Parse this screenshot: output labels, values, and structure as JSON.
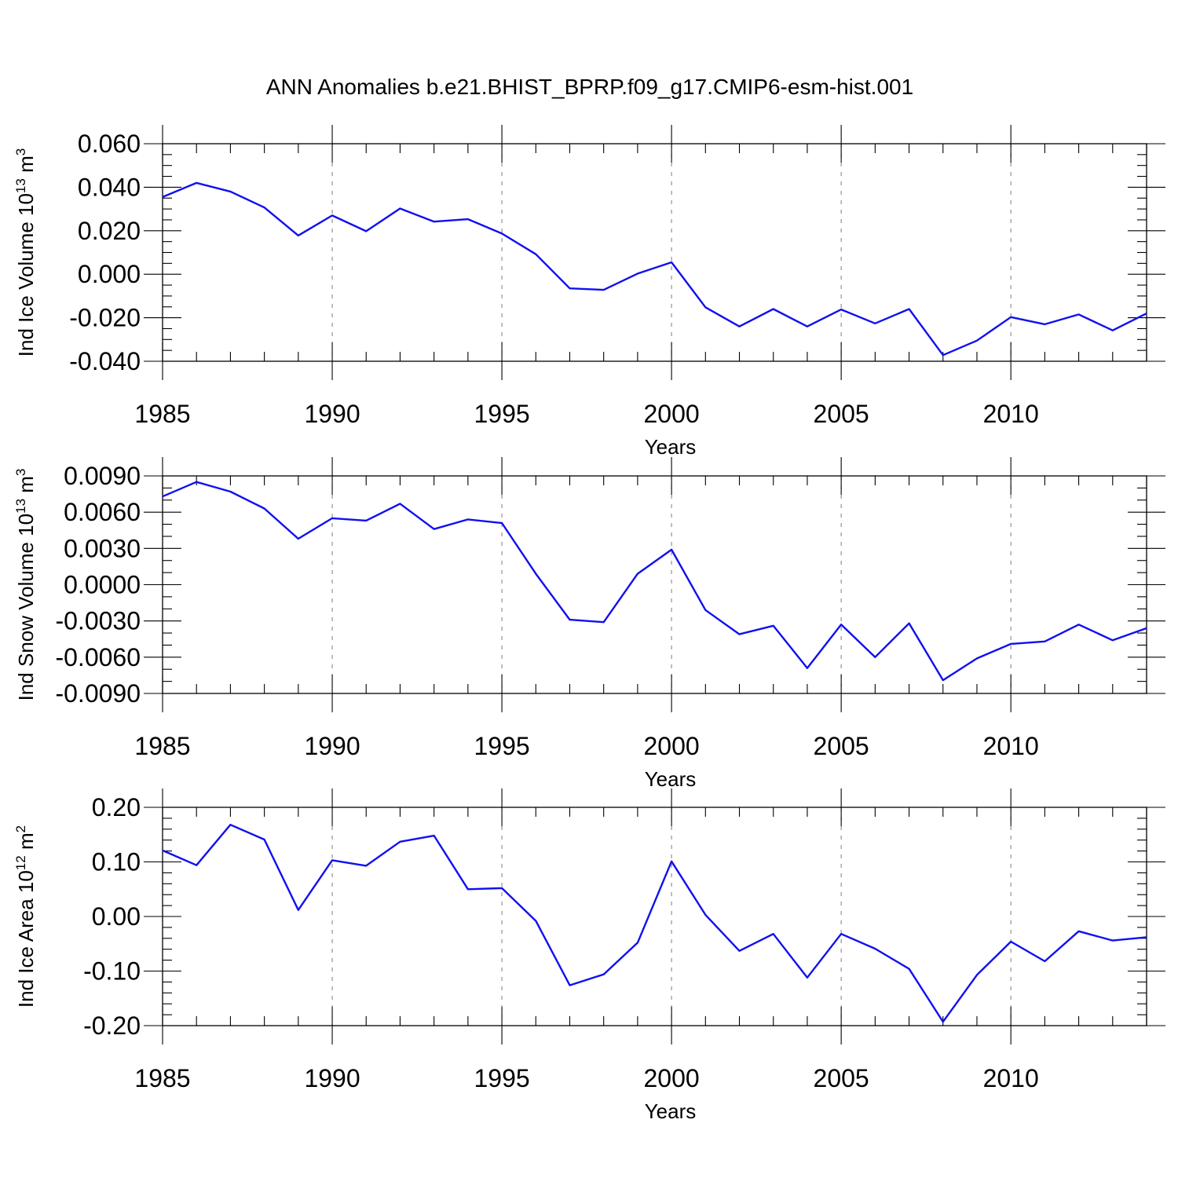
{
  "title": "ANN Anomalies b.e21.BHIST_BPRP.f09_g17.CMIP6-esm-hist.001",
  "series_color": "#1010f0",
  "chart_data": [
    {
      "type": "line",
      "ylabel_main": "Ind Ice Volume 10",
      "ylabel_exp": "13",
      "ylabel_unit": " m",
      "ylabel_unit_exp": "3",
      "xlabel": "Years",
      "xlim": [
        1985,
        2014
      ],
      "ylim": [
        -0.04,
        0.06
      ],
      "yticks": [
        0.06,
        0.04,
        0.02,
        0.0,
        -0.02,
        -0.04
      ],
      "yticklabels": [
        "0.060",
        "0.040",
        "0.020",
        "0.000",
        "-0.020",
        "-0.040"
      ],
      "yminor_step": 0.005,
      "xticks": [
        1985,
        1990,
        1995,
        2000,
        2005,
        2010
      ],
      "xticklabels": [
        "1985",
        "1990",
        "1995",
        "2000",
        "2005",
        "2010"
      ],
      "x": [
        1985,
        1986,
        1987,
        1988,
        1989,
        1990,
        1991,
        1992,
        1993,
        1994,
        1995,
        1996,
        1997,
        1998,
        1999,
        2000,
        2001,
        2002,
        2003,
        2004,
        2005,
        2006,
        2007,
        2008,
        2009,
        2010,
        2011,
        2012,
        2013,
        2014
      ],
      "values": [
        0.0355,
        0.042,
        0.038,
        0.0307,
        0.0178,
        0.027,
        0.0198,
        0.0302,
        0.0242,
        0.0253,
        0.0187,
        0.0092,
        -0.0065,
        -0.0072,
        0.0003,
        0.0055,
        -0.0152,
        -0.024,
        -0.016,
        -0.024,
        -0.0162,
        -0.0226,
        -0.016,
        -0.0372,
        -0.0305,
        -0.0197,
        -0.023,
        -0.0185,
        -0.0258,
        -0.018
      ]
    },
    {
      "type": "line",
      "ylabel_main": "Ind Snow Volume 10",
      "ylabel_exp": "13",
      "ylabel_unit": " m",
      "ylabel_unit_exp": "3",
      "xlabel": "Years",
      "xlim": [
        1985,
        2014
      ],
      "ylim": [
        -0.009,
        0.009
      ],
      "yticks": [
        0.009,
        0.006,
        0.003,
        0.0,
        -0.003,
        -0.006,
        -0.009
      ],
      "yticklabels": [
        "0.0090",
        "0.0060",
        "0.0030",
        "0.0000",
        "-0.0030",
        "-0.0060",
        "-0.0090"
      ],
      "yminor_step": 0.001,
      "xticks": [
        1985,
        1990,
        1995,
        2000,
        2005,
        2010
      ],
      "xticklabels": [
        "1985",
        "1990",
        "1995",
        "2000",
        "2005",
        "2010"
      ],
      "x": [
        1985,
        1986,
        1987,
        1988,
        1989,
        1990,
        1991,
        1992,
        1993,
        1994,
        1995,
        1996,
        1997,
        1998,
        1999,
        2000,
        2001,
        2002,
        2003,
        2004,
        2005,
        2006,
        2007,
        2008,
        2009,
        2010,
        2011,
        2012,
        2013,
        2014
      ],
      "values": [
        0.0073,
        0.0085,
        0.0077,
        0.0063,
        0.0038,
        0.0055,
        0.0053,
        0.0067,
        0.0046,
        0.0054,
        0.0051,
        0.0009,
        -0.0029,
        -0.0031,
        0.0009,
        0.0029,
        -0.0021,
        -0.0041,
        -0.0034,
        -0.0069,
        -0.0033,
        -0.006,
        -0.0032,
        -0.0079,
        -0.0061,
        -0.0049,
        -0.0047,
        -0.0033,
        -0.0046,
        -0.0036
      ]
    },
    {
      "type": "line",
      "ylabel_main": "Ind Ice Area 10",
      "ylabel_exp": "12",
      "ylabel_unit": " m",
      "ylabel_unit_exp": "2",
      "xlabel": "Years",
      "xlim": [
        1985,
        2014
      ],
      "ylim": [
        -0.2,
        0.2
      ],
      "yticks": [
        0.2,
        0.1,
        0.0,
        -0.1,
        -0.2
      ],
      "yticklabels": [
        "0.20",
        "0.10",
        "0.00",
        "-0.10",
        "-0.20"
      ],
      "yminor_step": 0.02,
      "xticks": [
        1985,
        1990,
        1995,
        2000,
        2005,
        2010
      ],
      "xticklabels": [
        "1985",
        "1990",
        "1995",
        "2000",
        "2005",
        "2010"
      ],
      "x": [
        1985,
        1986,
        1987,
        1988,
        1989,
        1990,
        1991,
        1992,
        1993,
        1994,
        1995,
        1996,
        1997,
        1998,
        1999,
        2000,
        2001,
        2002,
        2003,
        2004,
        2005,
        2006,
        2007,
        2008,
        2009,
        2010,
        2011,
        2012,
        2013,
        2014
      ],
      "values": [
        0.121,
        0.094,
        0.168,
        0.141,
        0.012,
        0.103,
        0.093,
        0.137,
        0.148,
        0.05,
        0.052,
        -0.008,
        -0.126,
        -0.106,
        -0.048,
        0.101,
        0.003,
        -0.063,
        -0.032,
        -0.112,
        -0.032,
        -0.059,
        -0.096,
        -0.193,
        -0.107,
        -0.046,
        -0.082,
        -0.027,
        -0.044,
        -0.038
      ]
    }
  ]
}
